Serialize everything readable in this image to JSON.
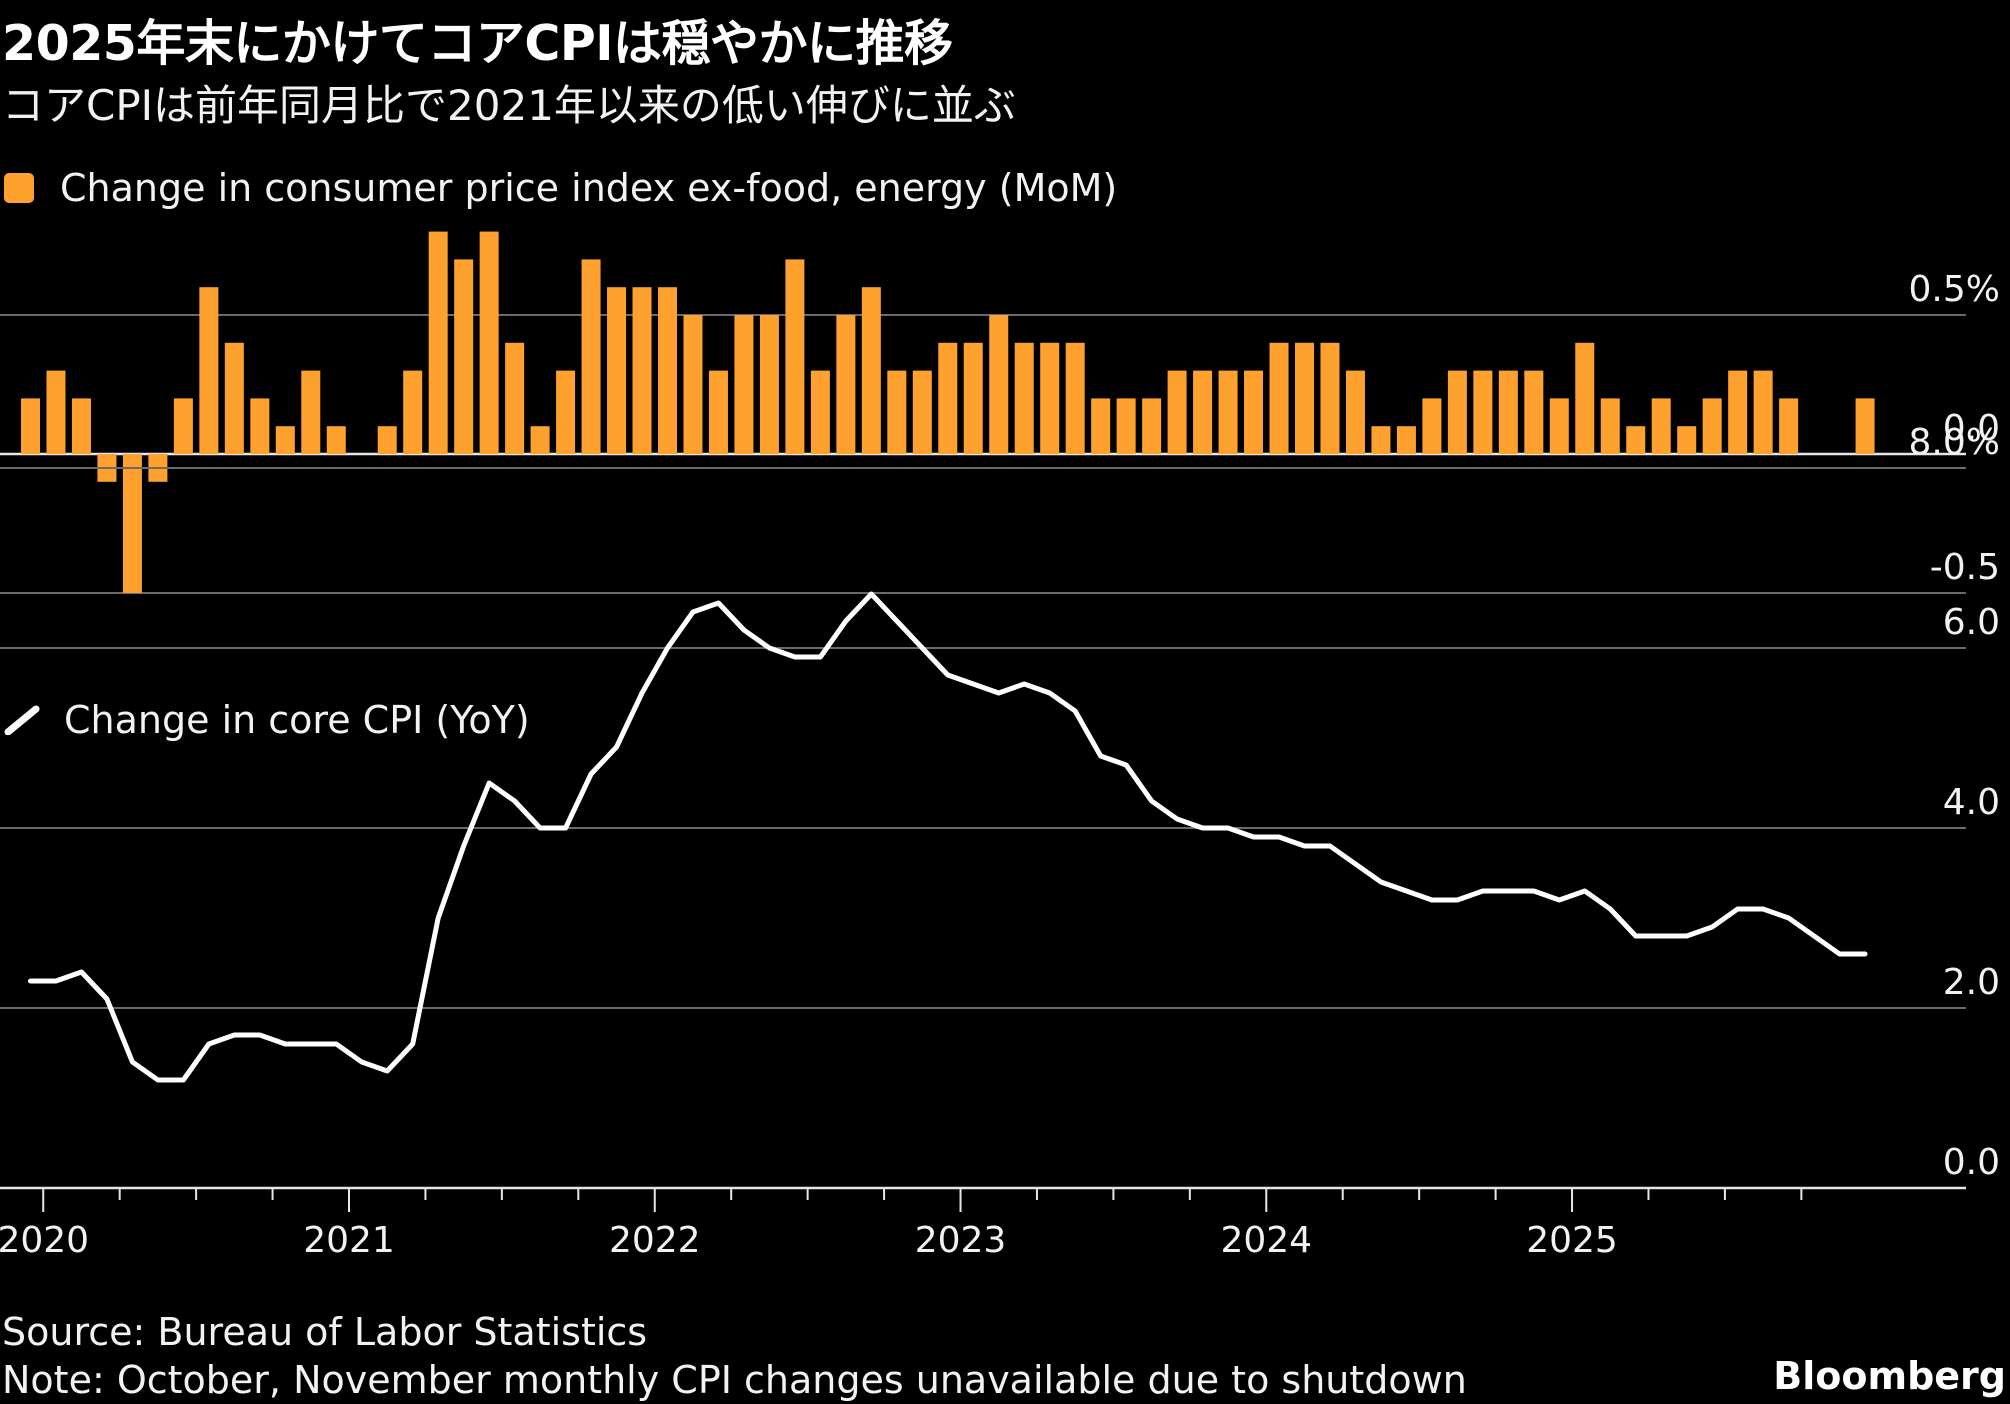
{
  "title": "2025年末にかけてコアCPIは穏やかに推移",
  "subtitle": "コアCPIは前年同月比で2021年以来の低い伸びに並ぶ",
  "colors": {
    "bar": "#ffa12e",
    "line": "#ffffff",
    "grid": "#6a6a6a",
    "background": "#000000"
  },
  "chart_data": [
    {
      "type": "bar",
      "legend": "Change in consumer price index ex-food, energy (MoM)",
      "legend_icon": "square-swatch-icon",
      "unit": "%",
      "yticks": [
        {
          "value": 0.5,
          "label": "0.5%"
        },
        {
          "value": 0.0,
          "label": "0.0"
        },
        {
          "value": -0.5,
          "label": "-0.5"
        }
      ],
      "ylim": [
        -0.5,
        0.8
      ],
      "x": [
        "2019-12",
        "2020-01",
        "2020-02",
        "2020-03",
        "2020-04",
        "2020-05",
        "2020-06",
        "2020-07",
        "2020-08",
        "2020-09",
        "2020-10",
        "2020-11",
        "2020-12",
        "2021-01",
        "2021-02",
        "2021-03",
        "2021-04",
        "2021-05",
        "2021-06",
        "2021-07",
        "2021-08",
        "2021-09",
        "2021-10",
        "2021-11",
        "2021-12",
        "2022-01",
        "2022-02",
        "2022-03",
        "2022-04",
        "2022-05",
        "2022-06",
        "2022-07",
        "2022-08",
        "2022-09",
        "2022-10",
        "2022-11",
        "2022-12",
        "2023-01",
        "2023-02",
        "2023-03",
        "2023-04",
        "2023-05",
        "2023-06",
        "2023-07",
        "2023-08",
        "2023-09",
        "2023-10",
        "2023-11",
        "2023-12",
        "2024-01",
        "2024-02",
        "2024-03",
        "2024-04",
        "2024-05",
        "2024-06",
        "2024-07",
        "2024-08",
        "2024-09",
        "2024-10",
        "2024-11",
        "2024-12",
        "2025-01",
        "2025-02",
        "2025-03",
        "2025-04",
        "2025-05",
        "2025-06",
        "2025-07",
        "2025-08",
        "2025-09",
        "2025-10",
        "2025-11",
        "2025-12"
      ],
      "values": [
        0.2,
        0.3,
        0.2,
        -0.1,
        -0.5,
        -0.1,
        0.2,
        0.6,
        0.4,
        0.2,
        0.1,
        0.3,
        0.1,
        0.0,
        0.1,
        0.3,
        0.8,
        0.7,
        0.8,
        0.4,
        0.1,
        0.3,
        0.7,
        0.6,
        0.6,
        0.6,
        0.5,
        0.3,
        0.5,
        0.5,
        0.7,
        0.3,
        0.5,
        0.6,
        0.3,
        0.3,
        0.4,
        0.4,
        0.5,
        0.4,
        0.4,
        0.4,
        0.2,
        0.2,
        0.2,
        0.3,
        0.3,
        0.3,
        0.3,
        0.4,
        0.4,
        0.4,
        0.3,
        0.1,
        0.1,
        0.2,
        0.3,
        0.3,
        0.3,
        0.3,
        0.2,
        0.4,
        0.2,
        0.1,
        0.2,
        0.1,
        0.2,
        0.3,
        0.3,
        0.2,
        null,
        null,
        0.2
      ]
    },
    {
      "type": "line",
      "legend": "Change in core CPI (YoY)",
      "legend_icon": "line-swatch-icon",
      "unit": "%",
      "yticks": [
        {
          "value": 8.0,
          "label": "8.0%"
        },
        {
          "value": 6.0,
          "label": "6.0"
        },
        {
          "value": 4.0,
          "label": "4.0"
        },
        {
          "value": 2.0,
          "label": "2.0"
        },
        {
          "value": 0.0,
          "label": "0.0"
        }
      ],
      "ylim": [
        0,
        8
      ],
      "x": [
        "2019-12",
        "2020-01",
        "2020-02",
        "2020-03",
        "2020-04",
        "2020-05",
        "2020-06",
        "2020-07",
        "2020-08",
        "2020-09",
        "2020-10",
        "2020-11",
        "2020-12",
        "2021-01",
        "2021-02",
        "2021-03",
        "2021-04",
        "2021-05",
        "2021-06",
        "2021-07",
        "2021-08",
        "2021-09",
        "2021-10",
        "2021-11",
        "2021-12",
        "2022-01",
        "2022-02",
        "2022-03",
        "2022-04",
        "2022-05",
        "2022-06",
        "2022-07",
        "2022-08",
        "2022-09",
        "2022-10",
        "2022-11",
        "2022-12",
        "2023-01",
        "2023-02",
        "2023-03",
        "2023-04",
        "2023-05",
        "2023-06",
        "2023-07",
        "2023-08",
        "2023-09",
        "2023-10",
        "2023-11",
        "2023-12",
        "2024-01",
        "2024-02",
        "2024-03",
        "2024-04",
        "2024-05",
        "2024-06",
        "2024-07",
        "2024-08",
        "2024-09",
        "2024-10",
        "2024-11",
        "2024-12",
        "2025-01",
        "2025-02",
        "2025-03",
        "2025-04",
        "2025-05",
        "2025-06",
        "2025-07",
        "2025-08",
        "2025-09",
        "2025-10",
        "2025-11",
        "2025-12"
      ],
      "values": [
        2.3,
        2.3,
        2.4,
        2.1,
        1.4,
        1.2,
        1.2,
        1.6,
        1.7,
        1.7,
        1.6,
        1.6,
        1.6,
        1.4,
        1.3,
        1.6,
        3.0,
        3.8,
        4.5,
        4.3,
        4.0,
        4.0,
        4.6,
        4.9,
        5.5,
        6.0,
        6.4,
        6.5,
        6.2,
        6.0,
        5.9,
        5.9,
        6.3,
        6.6,
        6.3,
        6.0,
        5.7,
        5.6,
        5.5,
        5.6,
        5.5,
        5.3,
        4.8,
        4.7,
        4.3,
        4.1,
        4.0,
        4.0,
        3.9,
        3.9,
        3.8,
        3.8,
        3.6,
        3.4,
        3.3,
        3.2,
        3.2,
        3.3,
        3.3,
        3.3,
        3.2,
        3.3,
        3.1,
        2.8,
        2.8,
        2.8,
        2.9,
        3.1,
        3.1,
        3.0,
        null,
        2.6,
        2.6
      ]
    }
  ],
  "x_axis": {
    "tick_labels": [
      "2020",
      "2021",
      "2022",
      "2023",
      "2024",
      "2025"
    ],
    "ticks_per_year": 4
  },
  "footer": {
    "source": "Source: Bureau of Labor Statistics",
    "note": "Note: October, November monthly CPI changes unavailable due to shutdown",
    "brand": "Bloomberg"
  }
}
